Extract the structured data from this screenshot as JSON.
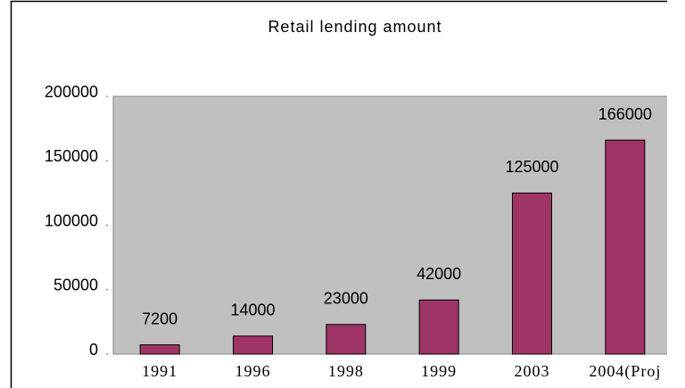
{
  "chart_data": {
    "type": "bar",
    "title": "Retail lending amount",
    "categories": [
      "1991",
      "1996",
      "1998",
      "1999",
      "2003",
      "2004(Proj"
    ],
    "values": [
      7200,
      14000,
      23000,
      42000,
      125000,
      166000
    ],
    "color": "#9e3566",
    "ylim": [
      0,
      200000
    ],
    "yticks": [
      0,
      50000,
      100000,
      150000,
      200000
    ],
    "grid": false
  }
}
